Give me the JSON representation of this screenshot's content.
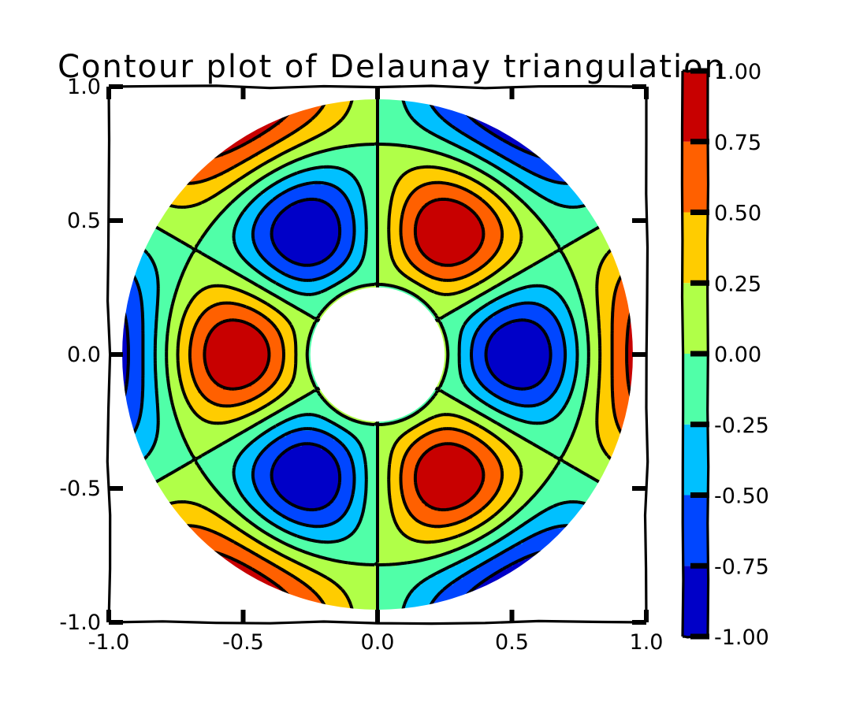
{
  "chart_data": {
    "type": "contour",
    "title": "Contour plot of Delaunay triangulation",
    "field": "cos(3*theta) * cos(6*r)",
    "domain": {
      "shape": "annulus",
      "r_inner": 0.25,
      "r_outer": 0.95
    },
    "xlim": [
      -1.0,
      1.0
    ],
    "ylim": [
      -1.0,
      1.0
    ],
    "x_ticks": [
      "-1.0",
      "-0.5",
      "0.0",
      "0.5",
      "1.0"
    ],
    "y_ticks": [
      "-1.0",
      "-0.5",
      "0.0",
      "0.5",
      "1.0"
    ],
    "x_tick_values": [
      -1.0,
      -0.5,
      0.0,
      0.5,
      1.0
    ],
    "y_tick_values": [
      -1.0,
      -0.5,
      0.0,
      0.5,
      1.0
    ],
    "contour_levels": [
      -1.0,
      -0.75,
      -0.5,
      -0.25,
      0.0,
      0.25,
      0.5,
      0.75,
      1.0
    ],
    "fill_colors": [
      "#0000c8",
      "#0046ff",
      "#00c0ff",
      "#50ffa8",
      "#b0ff48",
      "#ffcc00",
      "#ff6000",
      "#c80000"
    ],
    "negative_line_style": "dashed",
    "line_color": "#000000",
    "colorbar": {
      "labels": [
        "-1.00",
        "-0.75",
        "-0.50",
        "-0.25",
        "0.00",
        "0.25",
        "0.50",
        "0.75",
        "1.00"
      ],
      "values": [
        -1.0,
        -0.75,
        -0.5,
        -0.25,
        0.0,
        0.25,
        0.5,
        0.75,
        1.0
      ]
    },
    "grid": false,
    "style": "xkcd"
  }
}
